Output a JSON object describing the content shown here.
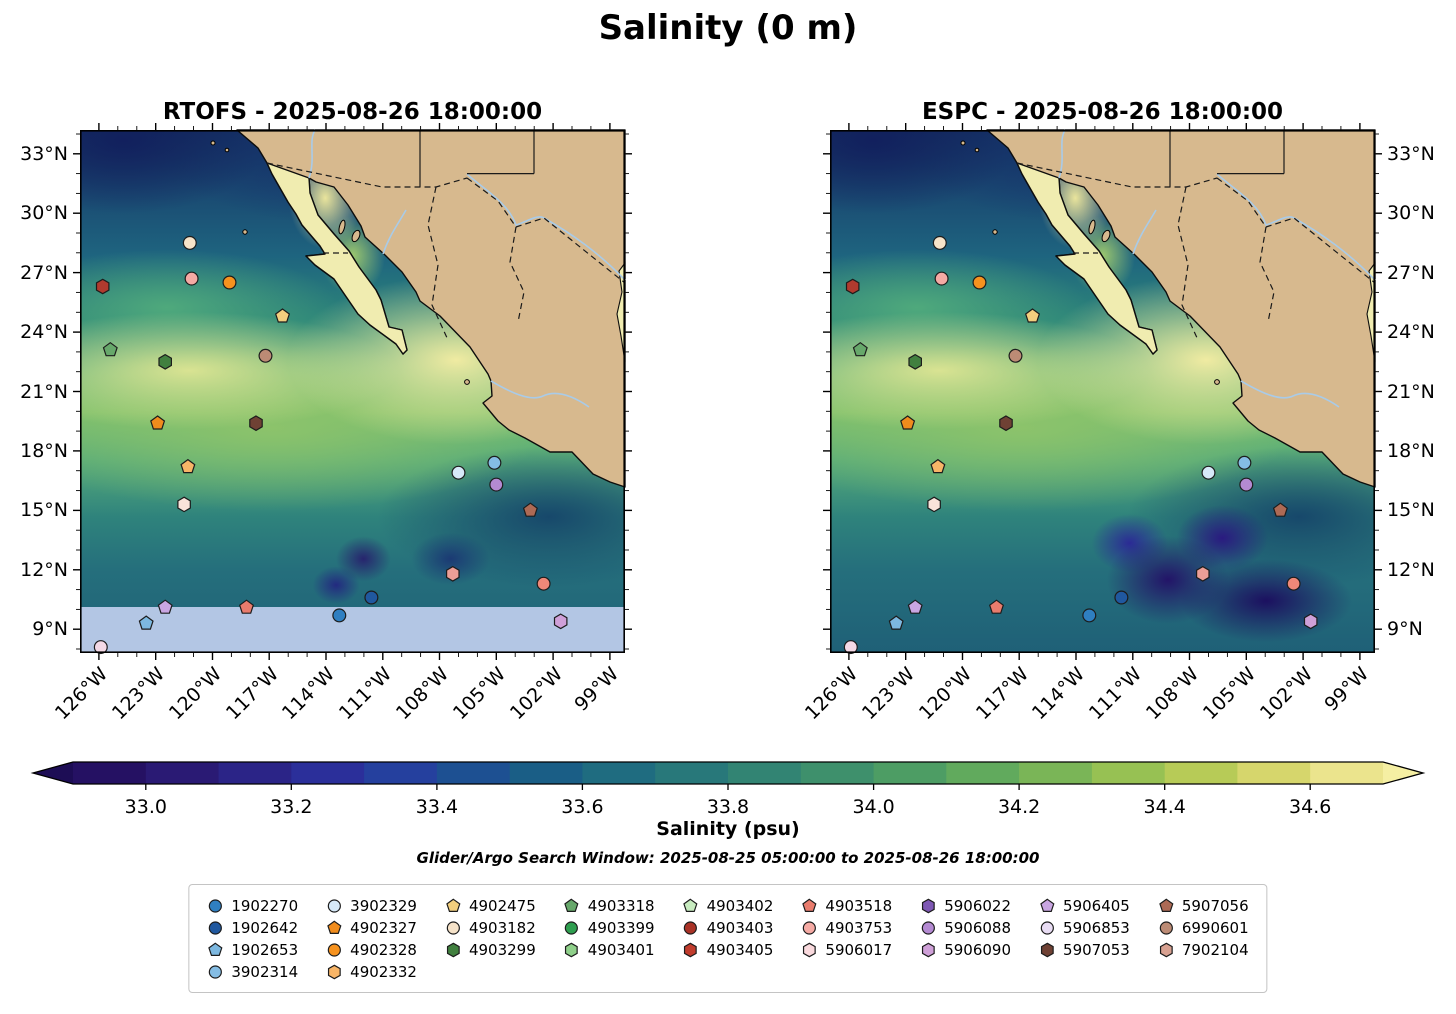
{
  "figure": {
    "title": "Salinity (0 m)",
    "panels": [
      {
        "id": "rtofs",
        "title": "RTOFS - 2025-08-26 18:00:00"
      },
      {
        "id": "espc",
        "title": "ESPC - 2025-08-26 18:00:00"
      }
    ],
    "lat_ticks": [
      {
        "label": "33°N",
        "lat": 33
      },
      {
        "label": "30°N",
        "lat": 30
      },
      {
        "label": "27°N",
        "lat": 27
      },
      {
        "label": "24°N",
        "lat": 24
      },
      {
        "label": "21°N",
        "lat": 21
      },
      {
        "label": "18°N",
        "lat": 18
      },
      {
        "label": "15°N",
        "lat": 15
      },
      {
        "label": "12°N",
        "lat": 12
      },
      {
        "label": "9°N",
        "lat": 9
      }
    ],
    "lon_ticks": [
      {
        "label": "126°W",
        "lon": -126
      },
      {
        "label": "123°W",
        "lon": -123
      },
      {
        "label": "120°W",
        "lon": -120
      },
      {
        "label": "117°W",
        "lon": -117
      },
      {
        "label": "114°W",
        "lon": -114
      },
      {
        "label": "111°W",
        "lon": -111
      },
      {
        "label": "108°W",
        "lon": -108
      },
      {
        "label": "105°W",
        "lon": -105
      },
      {
        "label": "102°W",
        "lon": -102
      },
      {
        "label": "99°W",
        "lon": -99
      }
    ],
    "land_color": "#d7b98e",
    "baja_color": "#f0ecb0",
    "rtofs_band_color": "#b3c6e4",
    "colorbar": {
      "label": "Salinity (psu)",
      "ticks": [
        "33.0",
        "33.2",
        "33.4",
        "33.6",
        "33.8",
        "34.0",
        "34.2",
        "34.4",
        "34.6"
      ],
      "range": [
        32.9,
        34.7
      ],
      "segment_colors": [
        "#251163",
        "#2a1a74",
        "#2b2487",
        "#2b2f9a",
        "#25409e",
        "#1d5092",
        "#1a5e86",
        "#1f6c80",
        "#28787a",
        "#328473",
        "#3e906c",
        "#4d9d64",
        "#61aa5d",
        "#7ab557",
        "#97c153",
        "#b7cb57",
        "#d6d66c",
        "#ebe48d"
      ],
      "extend_left_color": "#1d0d55",
      "extend_right_color": "#f5efa3"
    },
    "search_window": "Glider/Argo Search Window: 2025-08-25 05:00:00 to 2025-08-26 18:00:00"
  },
  "legend": {
    "columns": [
      [
        {
          "id": "1902270",
          "shape": "circle",
          "color": "#2f7fc1"
        },
        {
          "id": "1902642",
          "shape": "circle",
          "color": "#20589f"
        },
        {
          "id": "1902653",
          "shape": "pentagon",
          "color": "#7db8e0"
        },
        {
          "id": "3902314",
          "shape": "circle",
          "color": "#85bde4"
        }
      ],
      [
        {
          "id": "3902329",
          "shape": "circle",
          "color": "#d6e9f8"
        },
        {
          "id": "4902327",
          "shape": "pentagon",
          "color": "#f08c1d"
        },
        {
          "id": "4902328",
          "shape": "circle",
          "color": "#f6921e"
        },
        {
          "id": "4902332",
          "shape": "hexagon",
          "color": "#f8b567"
        }
      ],
      [
        {
          "id": "4902475",
          "shape": "pentagon",
          "color": "#f3cf7e"
        },
        {
          "id": "4903182",
          "shape": "circle",
          "color": "#f6e3c9"
        },
        {
          "id": "4903299",
          "shape": "hexagon",
          "color": "#41803f"
        }
      ],
      [
        {
          "id": "4903318",
          "shape": "pentagon",
          "color": "#67a86b"
        },
        {
          "id": "4903399",
          "shape": "circle",
          "color": "#2e9e4f"
        },
        {
          "id": "4903401",
          "shape": "hexagon",
          "color": "#8fd08a"
        }
      ],
      [
        {
          "id": "4903402",
          "shape": "pentagon",
          "color": "#c8ecc0"
        },
        {
          "id": "4903403",
          "shape": "circle",
          "color": "#a93226"
        },
        {
          "id": "4903405",
          "shape": "hexagon",
          "color": "#c13c2d"
        }
      ],
      [
        {
          "id": "4903518",
          "shape": "pentagon",
          "color": "#e97c6d"
        },
        {
          "id": "4903753",
          "shape": "circle",
          "color": "#f5aaa4"
        },
        {
          "id": "5906017",
          "shape": "hexagon",
          "color": "#fadade"
        }
      ],
      [
        {
          "id": "5906022",
          "shape": "hexagon",
          "color": "#7e57b4"
        },
        {
          "id": "5906088",
          "shape": "circle",
          "color": "#b48ad2"
        },
        {
          "id": "5906090",
          "shape": "hexagon",
          "color": "#cfa0d8"
        }
      ],
      [
        {
          "id": "5906405",
          "shape": "pentagon",
          "color": "#c9a6e2"
        },
        {
          "id": "5906853",
          "shape": "circle",
          "color": "#e8dcf3"
        },
        {
          "id": "5907053",
          "shape": "hexagon",
          "color": "#6f4134"
        }
      ],
      [
        {
          "id": "5907056",
          "shape": "pentagon",
          "color": "#ad6a55"
        },
        {
          "id": "6990601",
          "shape": "circle",
          "color": "#bc8b75"
        },
        {
          "id": "7902104",
          "shape": "hexagon",
          "color": "#d8a191"
        }
      ]
    ]
  },
  "chart_data": {
    "type": "heatmap",
    "title": "Salinity (0 m)",
    "panels": [
      "RTOFS - 2025-08-26 18:00:00",
      "ESPC - 2025-08-26 18:00:00"
    ],
    "variable": "Salinity (psu)",
    "depth_m": 0,
    "lon_domain": [
      -127,
      -98.2
    ],
    "lat_domain": [
      7.8,
      34.2
    ],
    "lon_tick_labels": [
      "126°W",
      "123°W",
      "120°W",
      "117°W",
      "114°W",
      "111°W",
      "108°W",
      "105°W",
      "102°W",
      "99°W"
    ],
    "lat_tick_labels": [
      "33°N",
      "30°N",
      "27°N",
      "24°N",
      "21°N",
      "18°N",
      "15°N",
      "12°N",
      "9°N"
    ],
    "colorbar_tick_values": [
      33.0,
      33.2,
      33.4,
      33.6,
      33.8,
      34.0,
      34.2,
      34.4,
      34.6
    ],
    "colorbar_label": "Salinity (psu)",
    "search_window": "Glider/Argo Search Window: 2025-08-25 05:00:00 to 2025-08-26 18:00:00",
    "rtofs_no_data_below_lat": 10.1,
    "platform_ids": [
      "1902270",
      "1902642",
      "1902653",
      "3902314",
      "3902329",
      "4902327",
      "4902328",
      "4902332",
      "4902475",
      "4903182",
      "4903299",
      "4903318",
      "4903399",
      "4903401",
      "4903402",
      "4903403",
      "4903405",
      "4903518",
      "4903753",
      "5906017",
      "5906022",
      "5906088",
      "5906090",
      "5906405",
      "5906853",
      "5907053",
      "5907056",
      "6990601",
      "7902104"
    ],
    "markers": [
      {
        "lon": -125.8,
        "lat": 26.3,
        "shape": "hexagon",
        "color": "#b03a2e"
      },
      {
        "lon": -121.2,
        "lat": 28.5,
        "shape": "circle",
        "color": "#f6e3c9"
      },
      {
        "lon": -121.1,
        "lat": 26.7,
        "shape": "circle",
        "color": "#f5aaa4"
      },
      {
        "lon": -119.1,
        "lat": 26.5,
        "shape": "circle",
        "color": "#f6921e"
      },
      {
        "lon": -116.3,
        "lat": 24.8,
        "shape": "pentagon",
        "color": "#f3cf7e"
      },
      {
        "lon": -125.4,
        "lat": 23.1,
        "shape": "pentagon",
        "color": "#67a86b"
      },
      {
        "lon": -122.5,
        "lat": 22.5,
        "shape": "hexagon",
        "color": "#41803f"
      },
      {
        "lon": -117.2,
        "lat": 22.8,
        "shape": "circle",
        "color": "#bc8b75"
      },
      {
        "lon": -122.9,
        "lat": 19.4,
        "shape": "pentagon",
        "color": "#f08c1d"
      },
      {
        "lon": -117.7,
        "lat": 19.4,
        "shape": "hexagon",
        "color": "#6f4134"
      },
      {
        "lon": -121.3,
        "lat": 17.2,
        "shape": "pentagon",
        "color": "#f8b567"
      },
      {
        "lon": -121.5,
        "lat": 15.3,
        "shape": "hexagon",
        "color": "#fae3da"
      },
      {
        "lon": -107.0,
        "lat": 16.9,
        "shape": "circle",
        "color": "#d6e9f8"
      },
      {
        "lon": -105.1,
        "lat": 17.4,
        "shape": "circle",
        "color": "#85bde4"
      },
      {
        "lon": -105.0,
        "lat": 16.3,
        "shape": "circle",
        "color": "#b48ad2"
      },
      {
        "lon": -103.2,
        "lat": 15.0,
        "shape": "pentagon",
        "color": "#ad6a55"
      },
      {
        "lon": -107.3,
        "lat": 11.8,
        "shape": "hexagon",
        "color": "#ec9f97"
      },
      {
        "lon": -102.5,
        "lat": 11.3,
        "shape": "circle",
        "color": "#ee8878"
      },
      {
        "lon": -113.3,
        "lat": 9.7,
        "shape": "circle",
        "color": "#2f7fc1"
      },
      {
        "lon": -111.6,
        "lat": 10.6,
        "shape": "circle",
        "color": "#20589f"
      },
      {
        "lon": -118.2,
        "lat": 10.1,
        "shape": "pentagon",
        "color": "#e97c6d"
      },
      {
        "lon": -122.5,
        "lat": 10.1,
        "shape": "pentagon",
        "color": "#c9a6e2"
      },
      {
        "lon": -123.5,
        "lat": 9.3,
        "shape": "pentagon",
        "color": "#7db8e0"
      },
      {
        "lon": -125.9,
        "lat": 8.1,
        "shape": "circle",
        "color": "#f4d9e6"
      },
      {
        "lon": -101.6,
        "lat": 9.4,
        "shape": "hexagon",
        "color": "#cfa0d8"
      }
    ]
  }
}
